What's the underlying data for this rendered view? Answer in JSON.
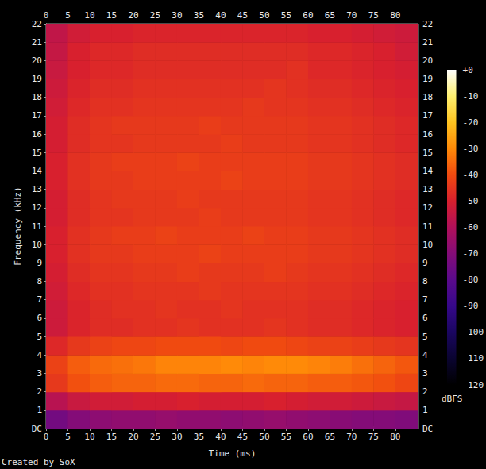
{
  "chart_data": {
    "type": "heatmap",
    "xlabel": "Time (ms)",
    "ylabel": "Frequency (kHz)",
    "annotations": [
      "Created by SoX"
    ],
    "xlim": [
      0,
      85.3
    ],
    "xticks": [
      0,
      5,
      10,
      15,
      20,
      25,
      30,
      35,
      40,
      45,
      50,
      55,
      60,
      65,
      70,
      75,
      80
    ],
    "ylim": [
      0,
      22
    ],
    "yticks": [
      {
        "value": 0,
        "label": "DC"
      },
      1,
      2,
      3,
      4,
      5,
      6,
      7,
      8,
      9,
      10,
      11,
      12,
      13,
      14,
      15,
      16,
      17,
      18,
      19,
      20,
      21,
      22
    ],
    "x_edges": [
      0,
      5,
      10,
      15,
      20,
      25,
      30,
      35,
      40,
      45,
      50,
      55,
      60,
      65,
      70,
      75,
      80,
      85.3
    ],
    "y_edges": [
      0,
      1,
      2,
      3,
      4,
      5,
      6,
      7,
      8,
      9,
      10,
      11,
      12,
      13,
      14,
      15,
      16,
      17,
      18,
      19,
      20,
      21,
      22
    ],
    "z": [
      [
        -74,
        -70,
        -68,
        -67,
        -67,
        -66,
        -67,
        -67,
        -68,
        -67,
        -66,
        -67,
        -68,
        -69,
        -70,
        -70,
        -71
      ],
      [
        -58,
        -54,
        -52,
        -52,
        -51,
        -51,
        -50,
        -51,
        -51,
        -51,
        -50,
        -51,
        -52,
        -52,
        -53,
        -54,
        -55
      ],
      [
        -44,
        -39,
        -37,
        -36,
        -36,
        -35,
        -35,
        -36,
        -36,
        -35,
        -36,
        -36,
        -37,
        -37,
        -38,
        -39,
        -41
      ],
      [
        -42,
        -37,
        -35,
        -34,
        -33,
        -31,
        -31,
        -31,
        -30,
        -31,
        -30,
        -30,
        -31,
        -32,
        -34,
        -36,
        -38
      ],
      [
        -48,
        -44,
        -42,
        -41,
        -41,
        -40,
        -40,
        -40,
        -41,
        -40,
        -40,
        -41,
        -42,
        -42,
        -43,
        -44,
        -45
      ],
      [
        -53,
        -49,
        -47,
        -47,
        -46,
        -46,
        -45,
        -46,
        -46,
        -46,
        -45,
        -46,
        -47,
        -47,
        -48,
        -49,
        -50
      ],
      [
        -53,
        -49,
        -47,
        -46,
        -46,
        -45,
        -46,
        -46,
        -45,
        -46,
        -46,
        -46,
        -47,
        -47,
        -48,
        -49,
        -50
      ],
      [
        -52,
        -48,
        -46,
        -46,
        -45,
        -45,
        -45,
        -44,
        -45,
        -45,
        -45,
        -45,
        -46,
        -46,
        -47,
        -48,
        -49
      ],
      [
        -51,
        -47,
        -45,
        -45,
        -44,
        -44,
        -43,
        -44,
        -44,
        -44,
        -43,
        -44,
        -45,
        -45,
        -46,
        -47,
        -48
      ],
      [
        -50,
        -46,
        -44,
        -44,
        -43,
        -43,
        -43,
        -42,
        -43,
        -43,
        -43,
        -43,
        -44,
        -44,
        -45,
        -46,
        -47
      ],
      [
        -50,
        -46,
        -44,
        -43,
        -43,
        -42,
        -43,
        -43,
        -43,
        -42,
        -43,
        -43,
        -44,
        -44,
        -45,
        -46,
        -47
      ],
      [
        -51,
        -47,
        -45,
        -45,
        -44,
        -44,
        -44,
        -43,
        -44,
        -44,
        -44,
        -44,
        -45,
        -45,
        -46,
        -47,
        -48
      ],
      [
        -51,
        -47,
        -45,
        -44,
        -44,
        -44,
        -43,
        -44,
        -44,
        -44,
        -44,
        -44,
        -45,
        -45,
        -46,
        -47,
        -48
      ],
      [
        -50,
        -46,
        -44,
        -44,
        -43,
        -43,
        -43,
        -43,
        -42,
        -43,
        -43,
        -43,
        -44,
        -44,
        -45,
        -46,
        -47
      ],
      [
        -50,
        -46,
        -44,
        -43,
        -43,
        -43,
        -42,
        -43,
        -43,
        -43,
        -43,
        -43,
        -44,
        -44,
        -45,
        -46,
        -47
      ],
      [
        -51,
        -47,
        -45,
        -45,
        -44,
        -44,
        -44,
        -44,
        -43,
        -44,
        -44,
        -44,
        -45,
        -45,
        -46,
        -47,
        -48
      ],
      [
        -51,
        -47,
        -45,
        -44,
        -44,
        -44,
        -44,
        -43,
        -44,
        -44,
        -44,
        -44,
        -45,
        -45,
        -46,
        -47,
        -48
      ],
      [
        -52,
        -48,
        -46,
        -46,
        -45,
        -45,
        -45,
        -45,
        -45,
        -44,
        -45,
        -45,
        -46,
        -46,
        -47,
        -48,
        -49
      ],
      [
        -53,
        -49,
        -47,
        -47,
        -46,
        -46,
        -46,
        -46,
        -46,
        -46,
        -45,
        -46,
        -47,
        -47,
        -48,
        -49,
        -50
      ],
      [
        -54,
        -50,
        -48,
        -48,
        -47,
        -47,
        -47,
        -47,
        -47,
        -47,
        -47,
        -46,
        -48,
        -48,
        -49,
        -50,
        -51
      ],
      [
        -55,
        -50,
        -48,
        -48,
        -47,
        -47,
        -47,
        -47,
        -47,
        -47,
        -47,
        -47,
        -48,
        -48,
        -49,
        -50,
        -52
      ],
      [
        -56,
        -52,
        -50,
        -50,
        -49,
        -49,
        -49,
        -49,
        -49,
        -49,
        -49,
        -49,
        -50,
        -50,
        -51,
        -52,
        -53
      ]
    ],
    "colorbar": {
      "range": [
        -120,
        0
      ],
      "ticks": [
        {
          "value": 0,
          "label": "+0"
        },
        -10,
        -20,
        -30,
        -40,
        -50,
        -60,
        -70,
        -80,
        -90,
        -100,
        -110,
        -120
      ],
      "label": "dBFS"
    }
  }
}
